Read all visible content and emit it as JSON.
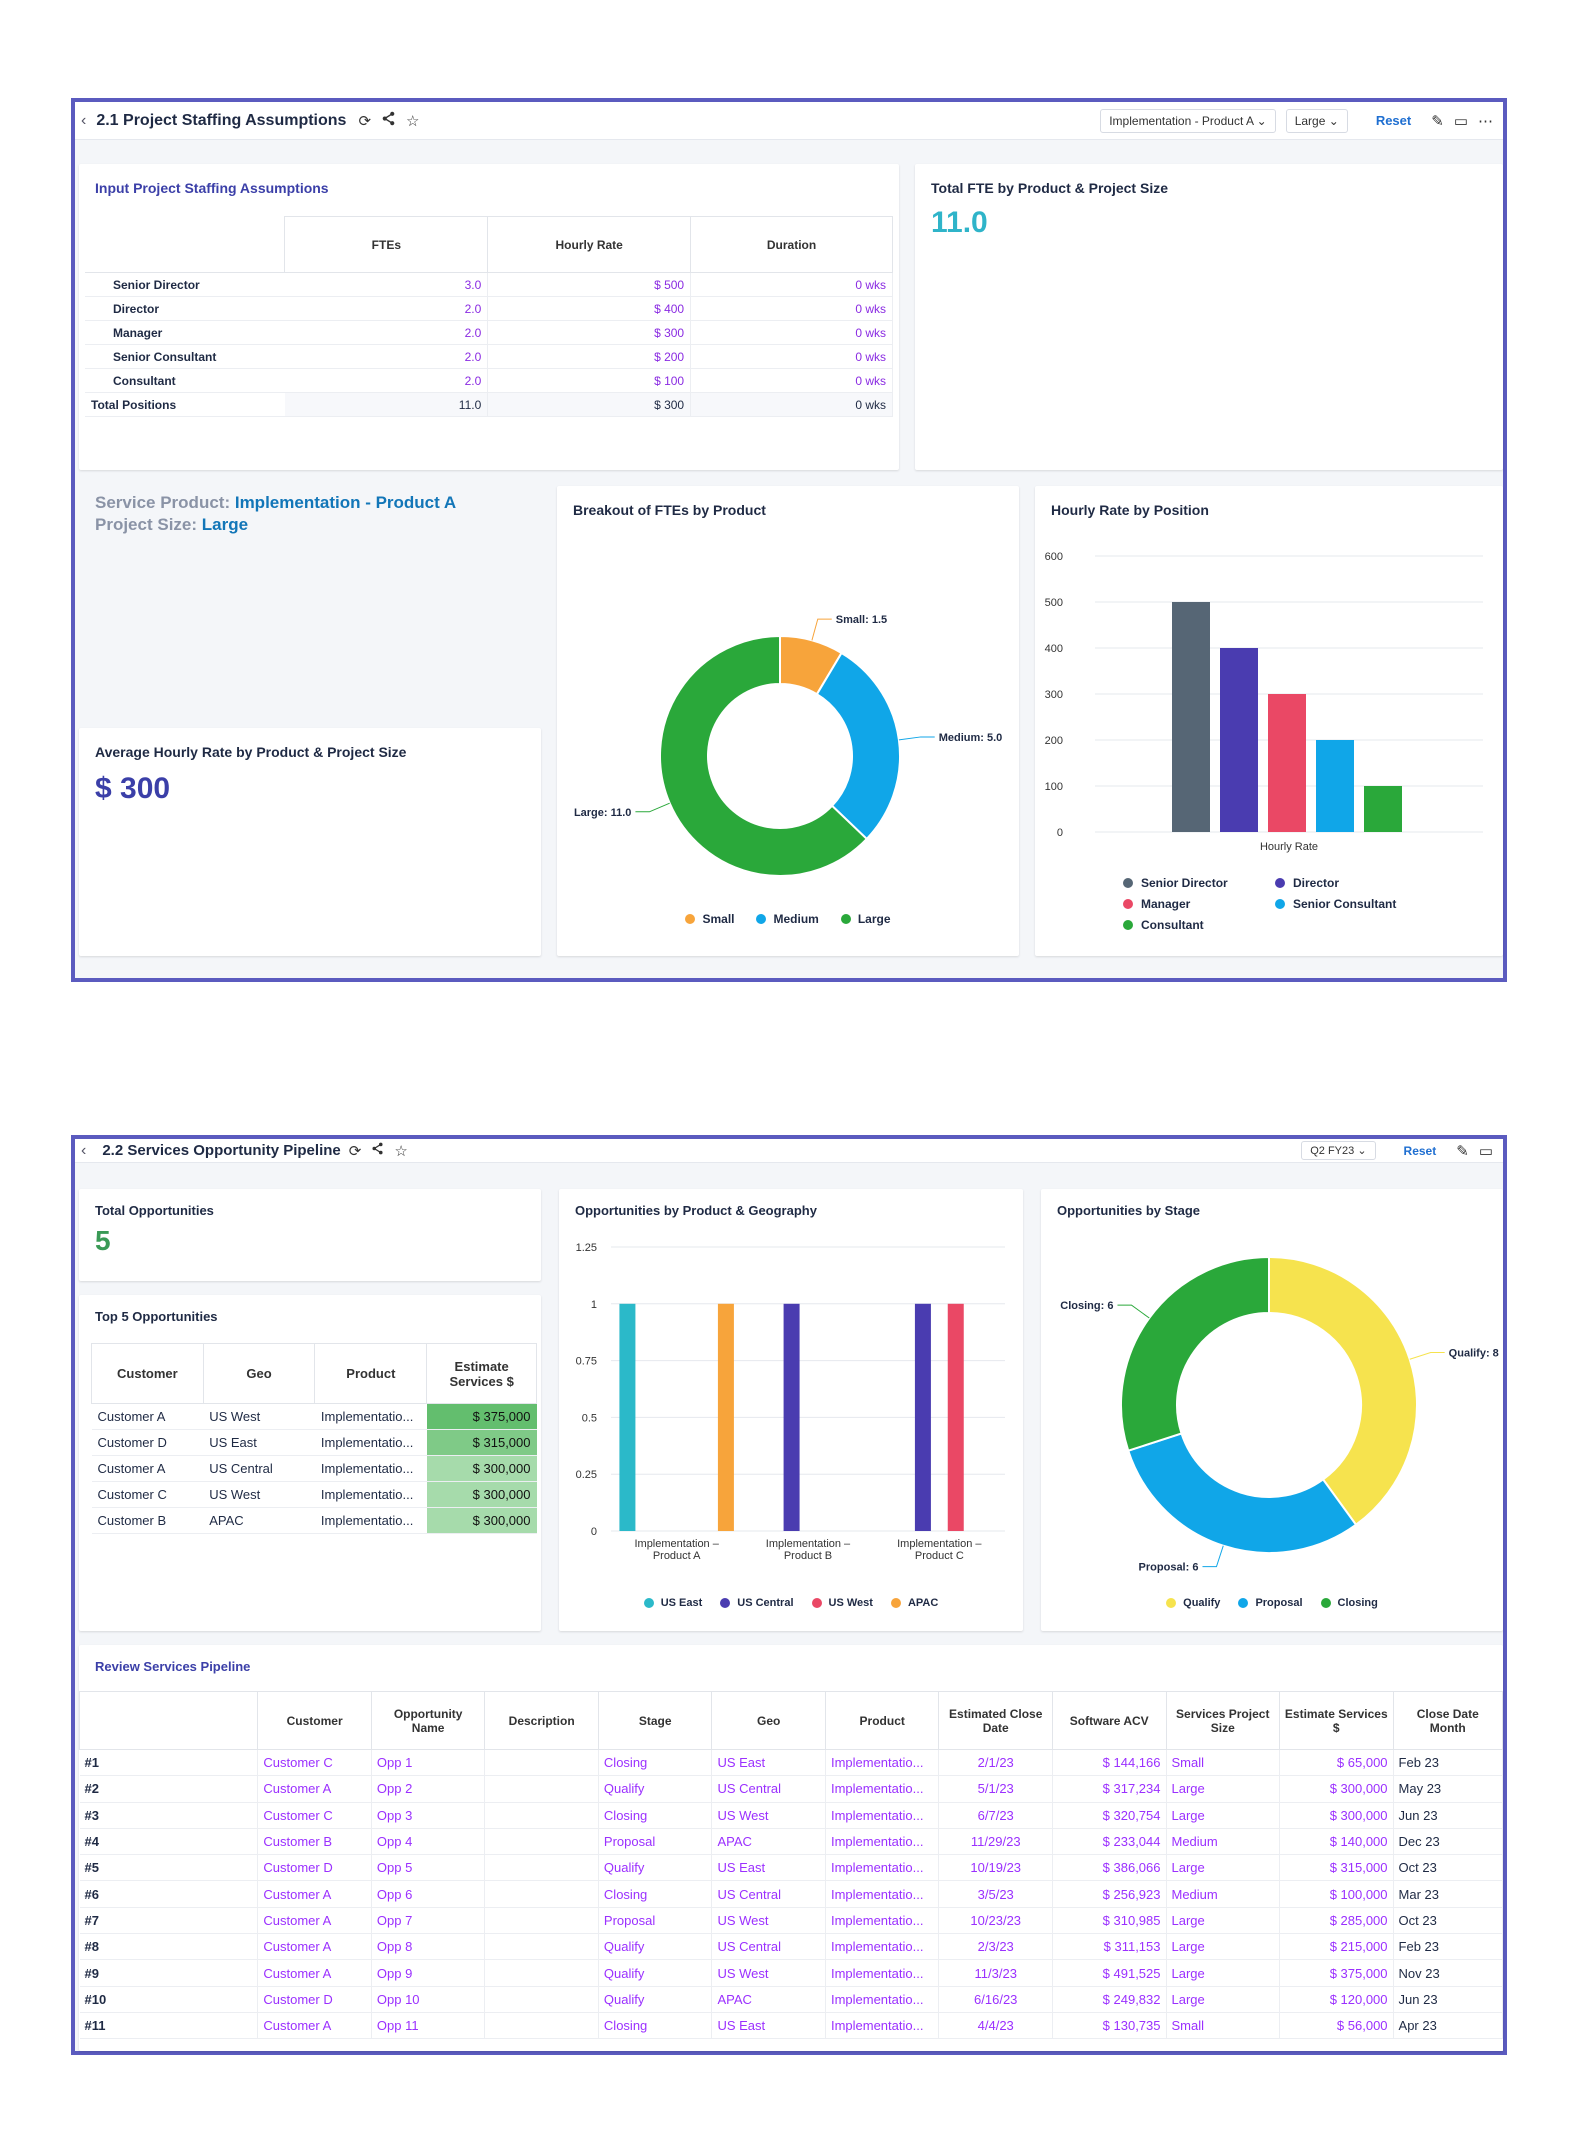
{
  "dash1": {
    "title": "2.1 Project Staffing Assumptions",
    "filter_product": "Implementation - Product A",
    "filter_size": "Large",
    "reset": "Reset",
    "input_card": {
      "title": "Input Project Staffing Assumptions",
      "headers": [
        "FTEs",
        "Hourly Rate",
        "Duration"
      ],
      "rows": [
        {
          "label": "Senior Director",
          "ftes": "3.0",
          "rate": "$ 500",
          "duration": "0 wks"
        },
        {
          "label": "Director",
          "ftes": "2.0",
          "rate": "$ 400",
          "duration": "0 wks"
        },
        {
          "label": "Manager",
          "ftes": "2.0",
          "rate": "$ 300",
          "duration": "0 wks"
        },
        {
          "label": "Senior Consultant",
          "ftes": "2.0",
          "rate": "$ 200",
          "duration": "0 wks"
        },
        {
          "label": "Consultant",
          "ftes": "2.0",
          "rate": "$ 100",
          "duration": "0 wks"
        }
      ],
      "total": {
        "label": "Total Positions",
        "ftes": "11.0",
        "rate": "$ 300",
        "duration": "0 wks"
      }
    },
    "total_fte": {
      "title": "Total FTE by Product & Project Size",
      "value": "11.0"
    },
    "service_info": {
      "product_label": "Service Product:",
      "product_value": "Implementation - Product A",
      "size_label": "Project Size:",
      "size_value": "Large"
    },
    "avg_rate": {
      "title": "Average Hourly Rate by Product & Project Size",
      "value": "$ 300"
    },
    "colors": {
      "accent": "#4b3fb0",
      "teal": "#2fb4c9",
      "frame": "#5b5bbf"
    }
  },
  "dash2": {
    "title": "2.2 Services Opportunity Pipeline",
    "filter_quarter": "Q2 FY23",
    "reset": "Reset",
    "total_opps": {
      "title": "Total Opportunities",
      "value": "5"
    },
    "top5": {
      "title": "Top 5 Opportunities",
      "headers": [
        "Customer",
        "Geo",
        "Product",
        "Estimate Services $"
      ],
      "rows": [
        {
          "customer": "Customer A",
          "geo": "US West",
          "product": "Implementatio...",
          "est": "$ 375,000",
          "color": "#63be6e"
        },
        {
          "customer": "Customer D",
          "geo": "US East",
          "product": "Implementatio...",
          "est": "$ 315,000",
          "color": "#7fca87"
        },
        {
          "customer": "Customer A",
          "geo": "US Central",
          "product": "Implementatio...",
          "est": "$ 300,000",
          "color": "#a6dbab"
        },
        {
          "customer": "Customer C",
          "geo": "US West",
          "product": "Implementatio...",
          "est": "$ 300,000",
          "color": "#a6dbab"
        },
        {
          "customer": "Customer B",
          "geo": "APAC",
          "product": "Implementatio...",
          "est": "$ 300,000",
          "color": "#a6dbab"
        }
      ]
    },
    "pipeline": {
      "title": "Review Services Pipeline",
      "headers": [
        "",
        "Customer",
        "Opportunity Name",
        "Description",
        "Stage",
        "Geo",
        "Product",
        "Estimated Close Date",
        "Software ACV",
        "Services Project Size",
        "Estimate Services $",
        "Close Date Month"
      ],
      "rows": [
        [
          "#1",
          "Customer C",
          "Opp 1",
          "",
          "Closing",
          "US East",
          "Implementatio...",
          "2/1/23",
          "$ 144,166",
          "Small",
          "$ 65,000",
          "Feb 23"
        ],
        [
          "#2",
          "Customer A",
          "Opp 2",
          "",
          "Qualify",
          "US Central",
          "Implementatio...",
          "5/1/23",
          "$ 317,234",
          "Large",
          "$ 300,000",
          "May 23"
        ],
        [
          "#3",
          "Customer C",
          "Opp 3",
          "",
          "Closing",
          "US West",
          "Implementatio...",
          "6/7/23",
          "$ 320,754",
          "Large",
          "$ 300,000",
          "Jun 23"
        ],
        [
          "#4",
          "Customer B",
          "Opp 4",
          "",
          "Proposal",
          "APAC",
          "Implementatio...",
          "11/29/23",
          "$ 233,044",
          "Medium",
          "$ 140,000",
          "Dec 23"
        ],
        [
          "#5",
          "Customer D",
          "Opp 5",
          "",
          "Qualify",
          "US East",
          "Implementatio...",
          "10/19/23",
          "$ 386,066",
          "Large",
          "$ 315,000",
          "Oct 23"
        ],
        [
          "#6",
          "Customer A",
          "Opp 6",
          "",
          "Closing",
          "US Central",
          "Implementatio...",
          "3/5/23",
          "$ 256,923",
          "Medium",
          "$ 100,000",
          "Mar 23"
        ],
        [
          "#7",
          "Customer A",
          "Opp 7",
          "",
          "Proposal",
          "US West",
          "Implementatio...",
          "10/23/23",
          "$ 310,985",
          "Large",
          "$ 285,000",
          "Oct 23"
        ],
        [
          "#8",
          "Customer A",
          "Opp 8",
          "",
          "Qualify",
          "US Central",
          "Implementatio...",
          "2/3/23",
          "$ 311,153",
          "Large",
          "$ 215,000",
          "Feb 23"
        ],
        [
          "#9",
          "Customer A",
          "Opp 9",
          "",
          "Qualify",
          "US West",
          "Implementatio...",
          "11/3/23",
          "$ 491,525",
          "Large",
          "$ 375,000",
          "Nov 23"
        ],
        [
          "#10",
          "Customer D",
          "Opp 10",
          "",
          "Qualify",
          "APAC",
          "Implementatio...",
          "6/16/23",
          "$ 249,832",
          "Large",
          "$ 120,000",
          "Jun 23"
        ],
        [
          "#11",
          "Customer A",
          "Opp 11",
          "",
          "Closing",
          "US East",
          "Implementatio...",
          "4/4/23",
          "$ 130,735",
          "Small",
          "$ 56,000",
          "Apr 23"
        ]
      ]
    }
  },
  "chart_data": [
    {
      "id": "fte_donut",
      "type": "pie",
      "title": "Breakout of FTEs by Product",
      "labels": [
        "Small",
        "Medium",
        "Large"
      ],
      "values": [
        1.5,
        5.0,
        11.0
      ],
      "data_labels": [
        "Small: 1.5",
        "Medium: 5.0",
        "Large: 11.0"
      ],
      "colors": [
        "#f7a43b",
        "#10a6e8",
        "#2aa83a"
      ],
      "legend": "bottom"
    },
    {
      "id": "rate_bar",
      "type": "bar",
      "title": "Hourly Rate by Position",
      "xlabel": "Hourly Rate",
      "categories": [
        "Hourly Rate"
      ],
      "series": [
        {
          "name": "Senior Director",
          "values": [
            500
          ],
          "color": "#566675"
        },
        {
          "name": "Director",
          "values": [
            400
          ],
          "color": "#4a3cb0"
        },
        {
          "name": "Manager",
          "values": [
            300
          ],
          "color": "#ea4865"
        },
        {
          "name": "Senior Consultant",
          "values": [
            200
          ],
          "color": "#10a6e8"
        },
        {
          "name": "Consultant",
          "values": [
            100
          ],
          "color": "#2aa83a"
        }
      ],
      "ylim": [
        0,
        600
      ],
      "yticks": [
        0,
        100,
        200,
        300,
        400,
        500,
        600
      ],
      "grid": true,
      "legend": "bottom"
    },
    {
      "id": "geo_bar",
      "type": "bar",
      "title": "Opportunities by Product & Geography",
      "categories": [
        [
          "Implementation –",
          "Product A"
        ],
        [
          "Implementation –",
          "Product B"
        ],
        [
          "Implementation –",
          "Product C"
        ]
      ],
      "series": [
        {
          "name": "US East",
          "values": [
            1,
            0,
            0
          ],
          "color": "#2bb9c9"
        },
        {
          "name": "US Central",
          "values": [
            0,
            1,
            1
          ],
          "color": "#4a3cb0"
        },
        {
          "name": "US West",
          "values": [
            0,
            0,
            1
          ],
          "color": "#ea4865"
        },
        {
          "name": "APAC",
          "values": [
            1,
            0,
            0
          ],
          "color": "#f7a43b"
        }
      ],
      "ylim": [
        0,
        1.25
      ],
      "yticks": [
        "0",
        "0.25",
        "0.5",
        "0.75",
        "1",
        "1.25"
      ],
      "grid": true,
      "legend": "bottom"
    },
    {
      "id": "stage_donut",
      "type": "pie",
      "title": "Opportunities by Stage",
      "labels": [
        "Qualify",
        "Proposal",
        "Closing"
      ],
      "values": [
        8,
        6,
        6
      ],
      "data_labels": [
        "Qualify: 8",
        "Proposal: 6",
        "Closing: 6"
      ],
      "colors": [
        "#f6e34e",
        "#10a6e8",
        "#2aa83a"
      ],
      "legend": "bottom"
    }
  ]
}
